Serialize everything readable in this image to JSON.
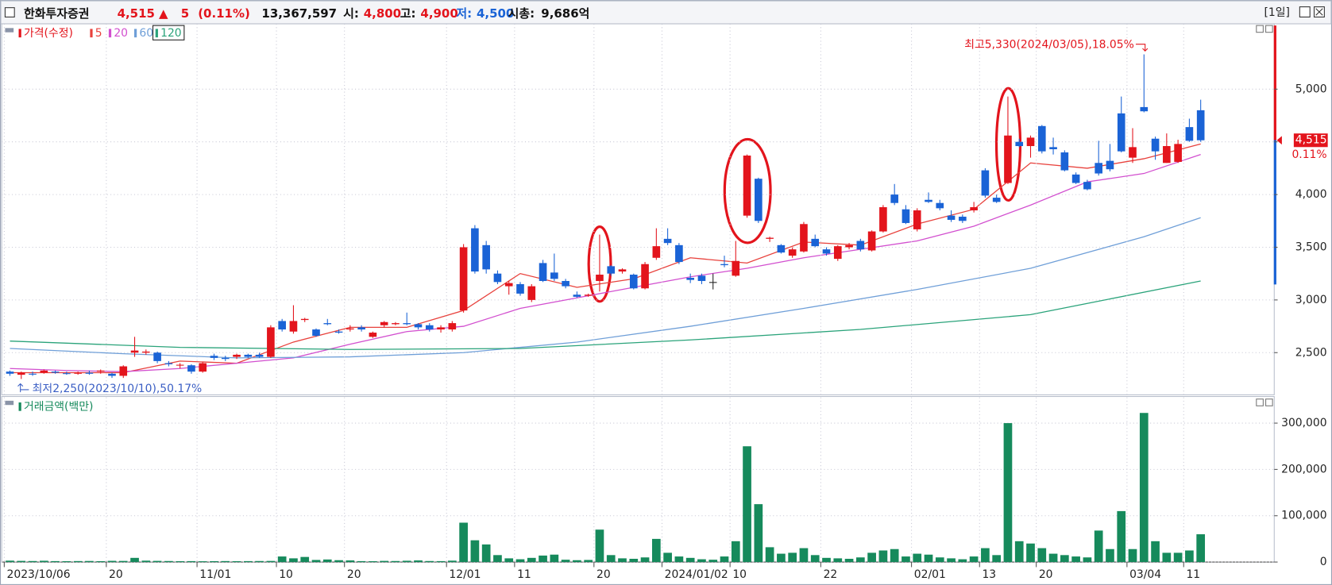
{
  "header": {
    "name": "한화투자증권",
    "price": "4,515",
    "arrow": "▲",
    "change": "5",
    "change_pct": "(0.11%)",
    "volume": "13,367,597",
    "open_label": "시:",
    "open": "4,800",
    "high_label": "고:",
    "high": "4,900",
    "low_label": "저:",
    "low": "4,500",
    "cap_label": "시총:",
    "cap": "9,686억",
    "period": "[1일]"
  },
  "chart_data": [
    {
      "type": "candlestick",
      "legend_title": "가격(수정)",
      "up_color": "#e3141c",
      "down_color": "#1a63d6",
      "open": [
        2320,
        2290,
        2300,
        2310,
        2320,
        2305,
        2300,
        2310,
        2320,
        2300,
        2280,
        2500,
        2500,
        2500,
        2400,
        2380,
        2380,
        2320,
        2470,
        2450,
        2460,
        2480,
        2480,
        2460,
        2800,
        2700,
        2810,
        2720,
        2780,
        2700,
        2720,
        2740,
        2650,
        2760,
        2770,
        2780,
        2770,
        2760,
        2720,
        2720,
        2900,
        3680,
        3520,
        3250,
        3130,
        3150,
        3000,
        3350,
        3260,
        3180,
        3050,
        3040,
        3180,
        3320,
        3270,
        3240,
        3110,
        3400,
        3580,
        3520,
        3210,
        3230,
        3170,
        3340,
        3230,
        3800,
        4150,
        3580,
        3520,
        3420,
        3460,
        3580,
        3480,
        3390,
        3500,
        3560,
        3470,
        3650,
        4000,
        3860,
        3670,
        3950,
        3920,
        3800,
        3790,
        3850,
        4230,
        3970,
        4110,
        4500,
        4460,
        4650,
        4450,
        4400,
        4190,
        4120,
        4300,
        4320,
        4770,
        4350,
        4830,
        4530,
        4300,
        4310,
        4640,
        4800
      ],
      "high": [
        2330,
        2320,
        2320,
        2340,
        2330,
        2320,
        2320,
        2330,
        2340,
        2310,
        2380,
        2650,
        2530,
        2510,
        2420,
        2400,
        2390,
        2410,
        2490,
        2470,
        2490,
        2490,
        2500,
        2760,
        2820,
        2950,
        2830,
        2730,
        2820,
        2720,
        2760,
        2760,
        2700,
        2800,
        2790,
        2880,
        2780,
        2780,
        2760,
        2800,
        3530,
        3710,
        3560,
        3280,
        3180,
        3170,
        3150,
        3380,
        3440,
        3200,
        3080,
        3060,
        3620,
        3330,
        3300,
        3250,
        3360,
        3680,
        3680,
        3540,
        3250,
        3250,
        3250,
        3420,
        3560,
        4380,
        4160,
        3600,
        3530,
        3500,
        3740,
        3620,
        3500,
        3520,
        3540,
        3580,
        3660,
        3900,
        4100,
        3900,
        3870,
        4020,
        3950,
        3850,
        3810,
        3930,
        4250,
        4000,
        4930,
        4530,
        4560,
        4660,
        4540,
        4420,
        4210,
        4140,
        4510,
        4480,
        4930,
        4630,
        5330,
        4550,
        4580,
        4520,
        4720,
        4900
      ],
      "low": [
        2280,
        2250,
        2280,
        2300,
        2300,
        2290,
        2290,
        2290,
        2300,
        2260,
        2260,
        2460,
        2480,
        2400,
        2370,
        2350,
        2300,
        2310,
        2430,
        2420,
        2440,
        2450,
        2450,
        2450,
        2700,
        2680,
        2790,
        2650,
        2760,
        2680,
        2700,
        2700,
        2640,
        2740,
        2760,
        2760,
        2720,
        2700,
        2690,
        2700,
        2880,
        3250,
        3250,
        3150,
        3050,
        3040,
        2980,
        3170,
        3180,
        3110,
        3020,
        3030,
        3080,
        3230,
        3250,
        3100,
        3100,
        3380,
        3520,
        3340,
        3160,
        3150,
        3100,
        3310,
        3220,
        3780,
        3730,
        3550,
        3440,
        3400,
        3450,
        3500,
        3420,
        3370,
        3480,
        3460,
        3460,
        3640,
        3900,
        3720,
        3650,
        3920,
        3850,
        3740,
        3730,
        3830,
        3970,
        3920,
        4100,
        4450,
        4350,
        4390,
        4380,
        4220,
        4100,
        4040,
        4180,
        4220,
        4400,
        4300,
        4780,
        4330,
        4300,
        4300,
        4500,
        4500
      ],
      "close": [
        2300,
        2310,
        2295,
        2330,
        2310,
        2300,
        2310,
        2300,
        2330,
        2280,
        2370,
        2520,
        2510,
        2420,
        2390,
        2385,
        2320,
        2400,
        2450,
        2440,
        2480,
        2460,
        2460,
        2740,
        2720,
        2800,
        2820,
        2660,
        2770,
        2690,
        2730,
        2720,
        2690,
        2790,
        2780,
        2770,
        2740,
        2720,
        2740,
        2780,
        3500,
        3270,
        3290,
        3170,
        3160,
        3060,
        3130,
        3180,
        3200,
        3130,
        3030,
        3050,
        3240,
        3250,
        3290,
        3110,
        3340,
        3510,
        3540,
        3360,
        3190,
        3180,
        3170,
        3330,
        3370,
        4370,
        3750,
        3590,
        3450,
        3480,
        3720,
        3510,
        3440,
        3510,
        3520,
        3480,
        3650,
        3880,
        3920,
        3730,
        3850,
        3930,
        3870,
        3760,
        3750,
        3880,
        3990,
        3930,
        4560,
        4460,
        4540,
        4410,
        4430,
        4230,
        4110,
        4050,
        4200,
        4240,
        4410,
        4450,
        4790,
        4410,
        4460,
        4480,
        4510,
        4515
      ],
      "series": [
        {
          "name": "5",
          "color": "#e8413c",
          "x": [
            0,
            5,
            10,
            15,
            20,
            25,
            30,
            35,
            40,
            45,
            50,
            55,
            60,
            65,
            70,
            75,
            80,
            85,
            90,
            95,
            100,
            105
          ],
          "values": [
            2310,
            2310,
            2310,
            2420,
            2400,
            2600,
            2740,
            2740,
            2900,
            3250,
            3120,
            3200,
            3400,
            3350,
            3550,
            3520,
            3720,
            3860,
            4300,
            4250,
            4340,
            4480
          ]
        },
        {
          "name": "20",
          "color": "#d24fcf",
          "x": [
            0,
            5,
            10,
            15,
            20,
            25,
            30,
            35,
            40,
            45,
            50,
            55,
            60,
            65,
            70,
            75,
            80,
            85,
            90,
            95,
            100,
            105
          ],
          "values": [
            2350,
            2330,
            2320,
            2350,
            2400,
            2450,
            2580,
            2700,
            2750,
            2920,
            3020,
            3120,
            3220,
            3300,
            3400,
            3480,
            3560,
            3700,
            3900,
            4120,
            4200,
            4380
          ]
        },
        {
          "name": "60",
          "color": "#6f9fd8",
          "x": [
            0,
            10,
            20,
            30,
            40,
            50,
            60,
            70,
            80,
            90,
            100,
            105
          ],
          "values": [
            2540,
            2490,
            2450,
            2460,
            2500,
            2600,
            2750,
            2920,
            3100,
            3300,
            3600,
            3780
          ]
        },
        {
          "name": "120",
          "color": "#2aa37a",
          "x": [
            0,
            15,
            30,
            45,
            60,
            75,
            90,
            105
          ],
          "values": [
            2610,
            2550,
            2530,
            2540,
            2620,
            2720,
            2860,
            3180
          ]
        }
      ],
      "annotations": [
        {
          "text": "최고5,330(2024/03/05),18.05%"
        },
        {
          "text": "최저2,250(2023/10/10),50.17%"
        }
      ],
      "last_value_label": "4,515",
      "last_change_label": "0.11%",
      "ylim": [
        2100,
        5620
      ],
      "yticks": [
        {
          "value": 2500,
          "label": "2,500"
        },
        {
          "value": 3000,
          "label": "3,000"
        },
        {
          "value": 3500,
          "label": "3,500"
        },
        {
          "value": 4000,
          "label": "4,000"
        },
        {
          "value": 4500,
          "label": "4,500"
        },
        {
          "value": 5000,
          "label": "5,000"
        }
      ],
      "grid": true
    },
    {
      "type": "bar",
      "title": "거래금액(백만)",
      "color": "#168a5c",
      "categories": [
        "2023/10/06",
        null,
        null,
        null,
        null,
        null,
        null,
        null,
        null,
        "20",
        null,
        null,
        null,
        null,
        null,
        null,
        null,
        "11/01",
        null,
        null,
        null,
        null,
        null,
        null,
        "10",
        null,
        null,
        null,
        null,
        null,
        "20",
        null,
        null,
        null,
        null,
        null,
        null,
        null,
        null,
        "12/01",
        null,
        null,
        null,
        null,
        null,
        "11",
        null,
        null,
        null,
        null,
        null,
        null,
        "20",
        null,
        null,
        null,
        null,
        null,
        "2024/01/02",
        null,
        null,
        null,
        null,
        null,
        "10",
        null,
        null,
        null,
        null,
        null,
        null,
        null,
        "22",
        null,
        null,
        null,
        null,
        null,
        null,
        null,
        "02/01",
        null,
        null,
        null,
        null,
        null,
        "13",
        null,
        null,
        null,
        null,
        "20",
        null,
        null,
        null,
        null,
        null,
        null,
        null,
        "03/04",
        null,
        null,
        null,
        null,
        "11",
        null
      ],
      "values": [
        3000,
        2500,
        2200,
        2800,
        2000,
        1800,
        2100,
        2300,
        1900,
        2600,
        2400,
        9000,
        3000,
        2500,
        2200,
        1800,
        2000,
        1700,
        1900,
        2100,
        1800,
        2000,
        2200,
        2400,
        12000,
        8000,
        11000,
        4500,
        5500,
        4000,
        3500,
        2000,
        1800,
        2500,
        2200,
        2800,
        3500,
        2200,
        2000,
        3000,
        85000,
        47000,
        38000,
        15000,
        8000,
        6000,
        9000,
        14000,
        16000,
        5000,
        4000,
        4500,
        70000,
        15000,
        8000,
        7000,
        10000,
        50000,
        20000,
        12000,
        9000,
        6000,
        5000,
        12000,
        45000,
        250000,
        125000,
        32000,
        18000,
        20000,
        30000,
        15000,
        9000,
        8000,
        7000,
        10000,
        20000,
        25000,
        28000,
        12000,
        18000,
        16000,
        10000,
        8000,
        6000,
        12000,
        30000,
        15000,
        300000,
        45000,
        40000,
        30000,
        18000,
        15000,
        12000,
        10000,
        68000,
        28000,
        110000,
        28000,
        322000,
        45000,
        20000,
        20000,
        25000,
        60000
      ],
      "ylim": [
        0,
        330000
      ],
      "yticks": [
        0,
        {
          "value": 100000,
          "label": "100,000"
        },
        {
          "value": 200000,
          "label": "200,000"
        },
        {
          "value": 300000,
          "label": "300,000"
        }
      ],
      "grid": true
    }
  ]
}
